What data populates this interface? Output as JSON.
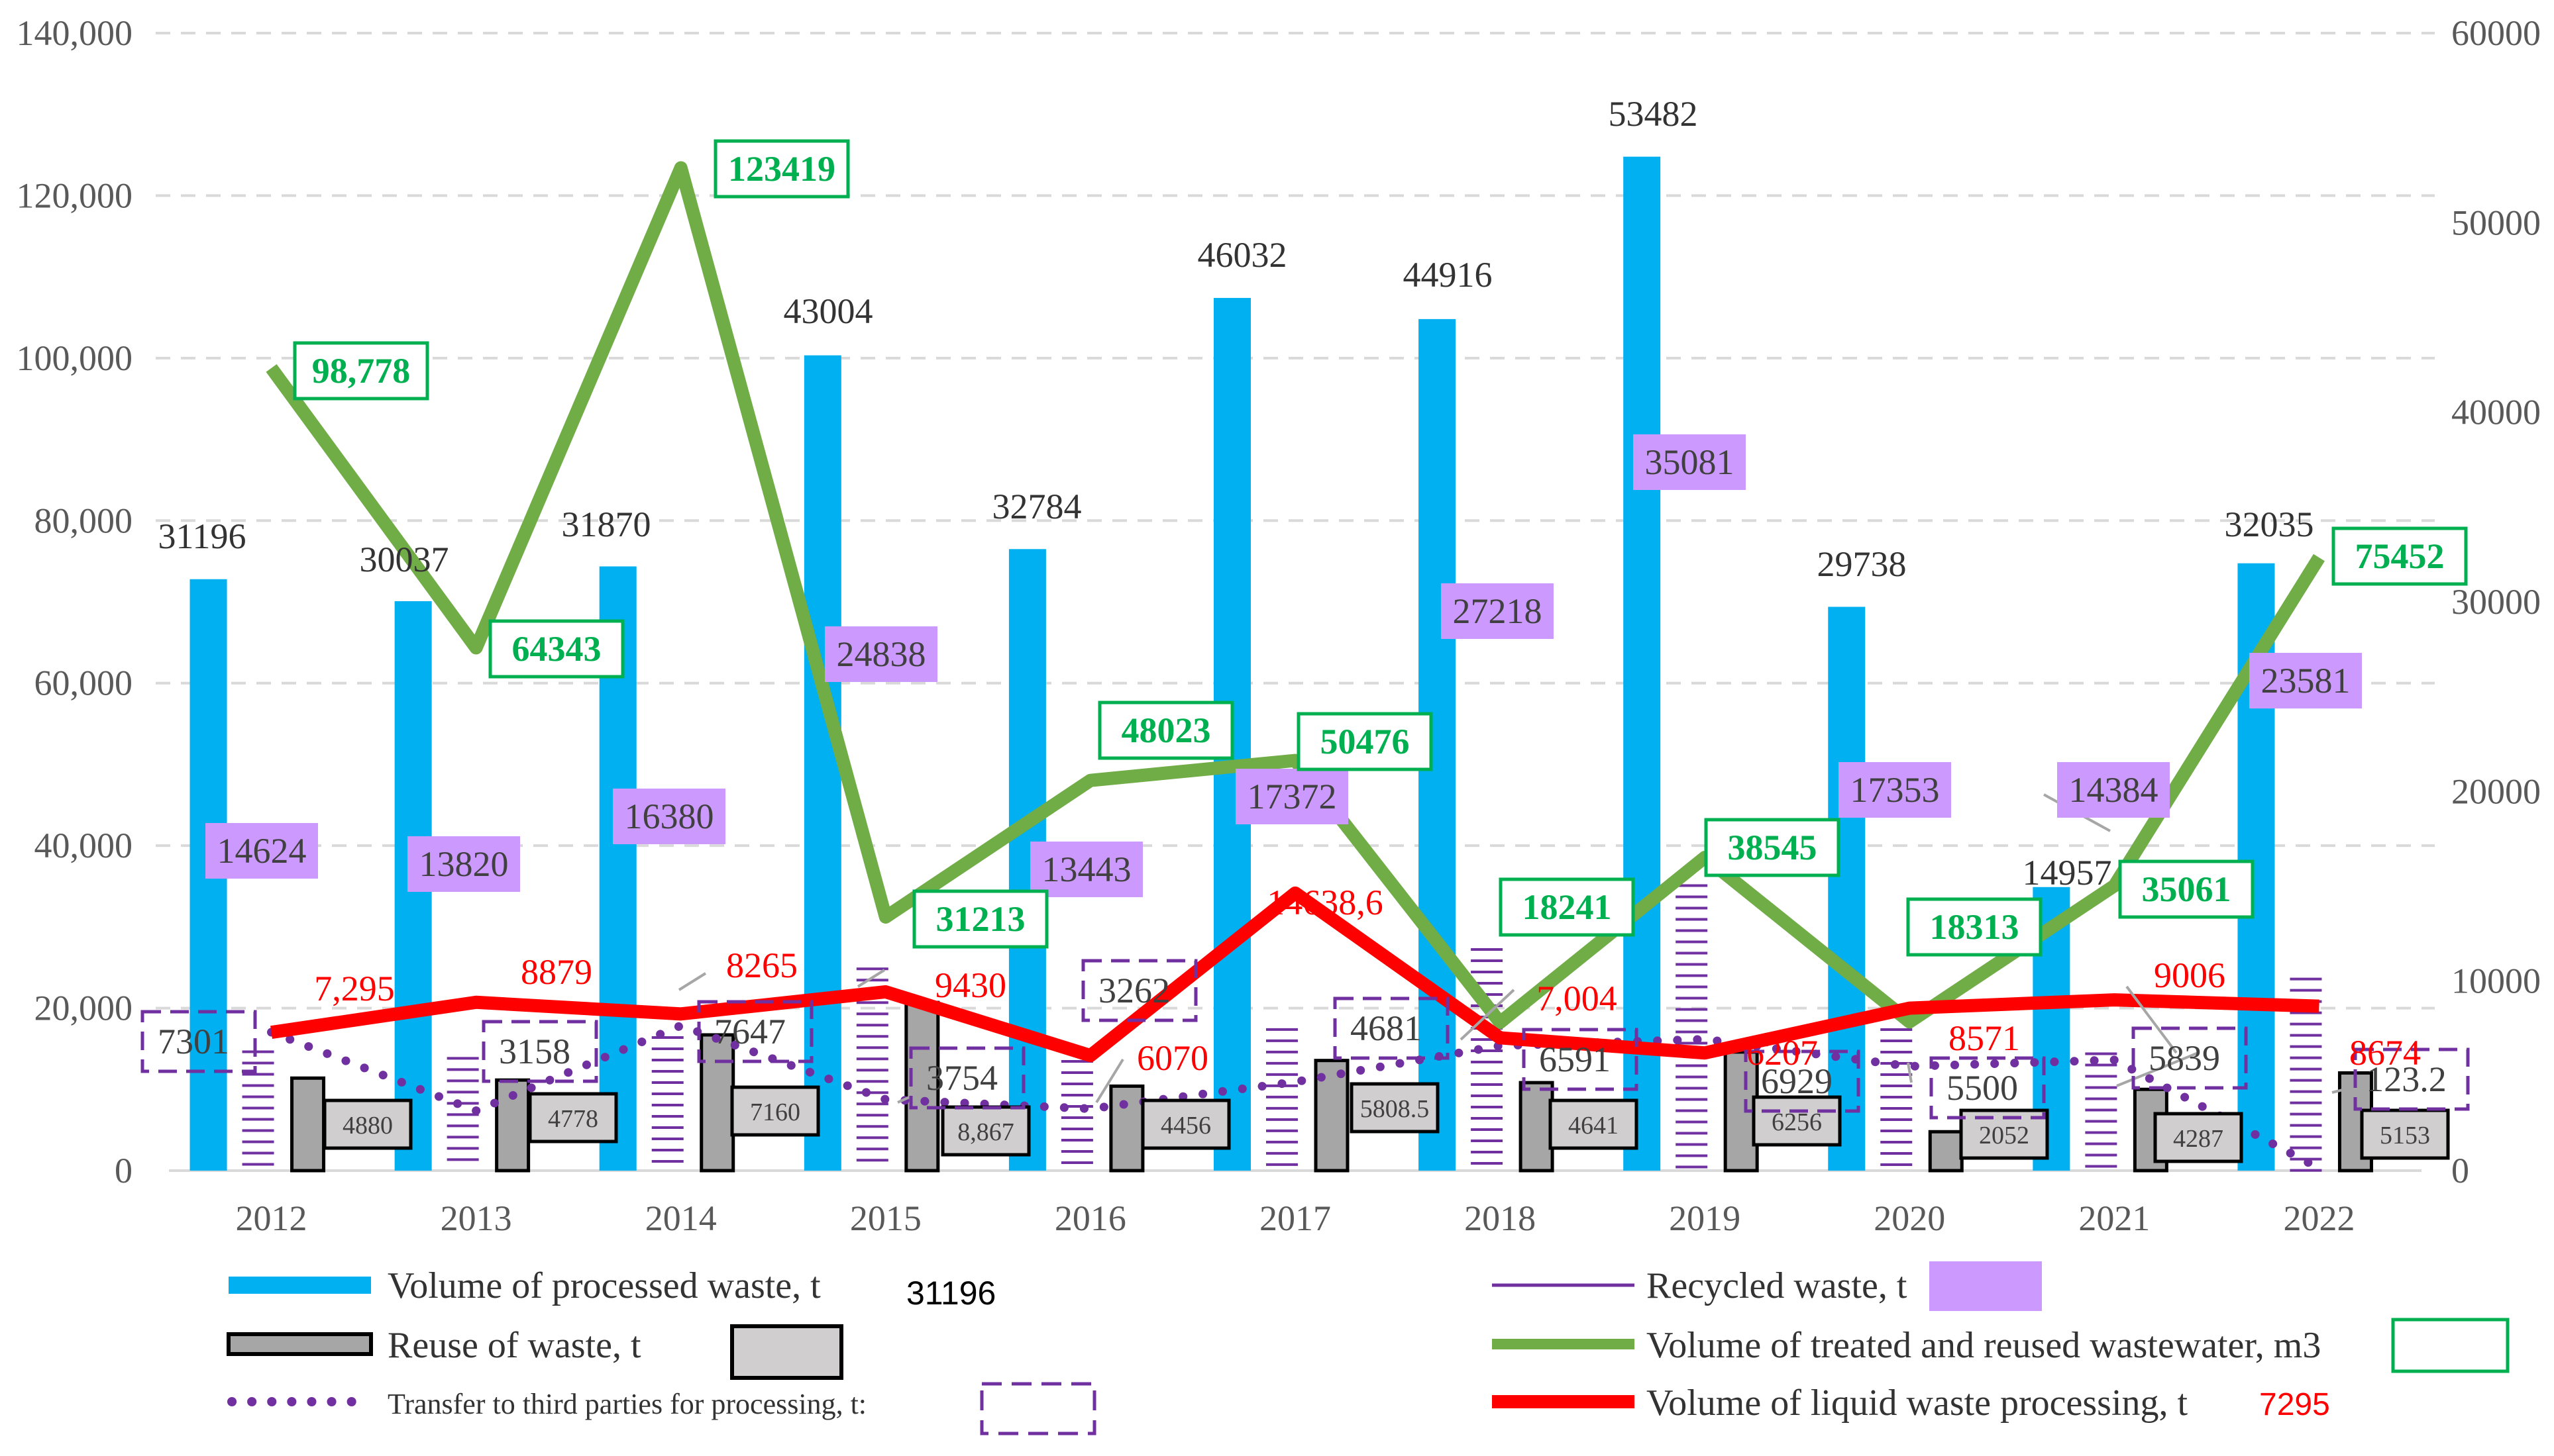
{
  "chart_data": {
    "type": "bar",
    "categories": [
      "2012",
      "2013",
      "2014",
      "2015",
      "2016",
      "2017",
      "2018",
      "2019",
      "2020",
      "2021",
      "2022"
    ],
    "left_axis": {
      "min": 0,
      "max": 140000,
      "step": 20000,
      "tick_labels": [
        "0",
        "20,000",
        "40,000",
        "60,000",
        "80,000",
        "100,000",
        "120,000",
        "140,000"
      ]
    },
    "right_axis": {
      "min": 0,
      "max": 60000,
      "step": 10000,
      "tick_labels": [
        "0",
        "10000",
        "20000",
        "30000",
        "40000",
        "50000",
        "60000"
      ]
    },
    "series": [
      {
        "key": "processed",
        "name": "Volume of processed waste, t",
        "type": "bar",
        "axis": "right",
        "color": "#00b0f0",
        "values": [
          31196,
          30037,
          31870,
          43004,
          32784,
          46032,
          44916,
          53482,
          29738,
          14957,
          32035
        ],
        "labels": [
          "31196",
          "30037",
          "31870",
          "43004",
          "32784",
          "46032",
          "44916",
          "53482",
          "29738",
          "14957",
          "32035"
        ]
      },
      {
        "key": "recycled",
        "name": "Recycled waste, t",
        "type": "bar",
        "axis": "left",
        "color": "#7030a0",
        "label_bg": "#cc99ff",
        "values": [
          14624,
          13820,
          16380,
          24838,
          13443,
          17372,
          27218,
          35081,
          17353,
          14384,
          23581
        ],
        "labels": [
          "14624",
          "13820",
          "16380",
          "24838",
          "13443",
          "17372",
          "27218",
          "35081",
          "17353",
          "14384",
          "23581"
        ]
      },
      {
        "key": "reuse",
        "name": "Reuse of waste, t",
        "type": "bar",
        "axis": "right",
        "color": "#a6a6a6",
        "values": [
          4880,
          4778,
          7160,
          8867,
          4456,
          5808.5,
          4641,
          6256,
          2052,
          4287,
          5153
        ],
        "labels": [
          "4880",
          "4778",
          "7160",
          "8,867",
          "4456",
          "5808.5",
          "4641",
          "6256",
          "2052",
          "4287",
          "5153"
        ]
      },
      {
        "key": "wastewater",
        "name": "Volume of treated and reused wastewater, m3",
        "type": "line",
        "axis": "left",
        "color": "#70ad47",
        "values": [
          98778,
          64343,
          123419,
          31213,
          48023,
          50476,
          18241,
          38545,
          18313,
          35061,
          75452
        ],
        "labels": [
          "98,778",
          "64343",
          "123419",
          "31213",
          "48023",
          "50476",
          "18241",
          "38545",
          "18313",
          "35061",
          "75452"
        ]
      },
      {
        "key": "transfer",
        "name": "Transfer to third parties for processing, t:",
        "type": "line",
        "axis": "right",
        "color": "#7030a0",
        "values": [
          7301,
          3158,
          7647,
          3754,
          3262,
          4681,
          6591,
          6929,
          5500,
          5839,
          123.2
        ],
        "labels": [
          "7301",
          "3158",
          "7647",
          "3754",
          "3262",
          "4681",
          "6591",
          "6929",
          "5500",
          "5839",
          "123.2"
        ]
      },
      {
        "key": "liquid",
        "name": "Volume of liquid waste processing, t",
        "type": "line",
        "axis": "right",
        "color": "#ff0000",
        "values": [
          7295,
          8879,
          8265,
          9430,
          6070,
          14638.6,
          7004,
          6207,
          8571,
          9006,
          8674
        ],
        "labels": [
          "7,295",
          "8879",
          "8265",
          "9430",
          "6070",
          "14638,6",
          "7,004",
          "6207",
          "8571",
          "9006",
          "8674"
        ]
      }
    ],
    "legend": {
      "processed_sample": "31196",
      "liquid_sample": "7295"
    }
  }
}
